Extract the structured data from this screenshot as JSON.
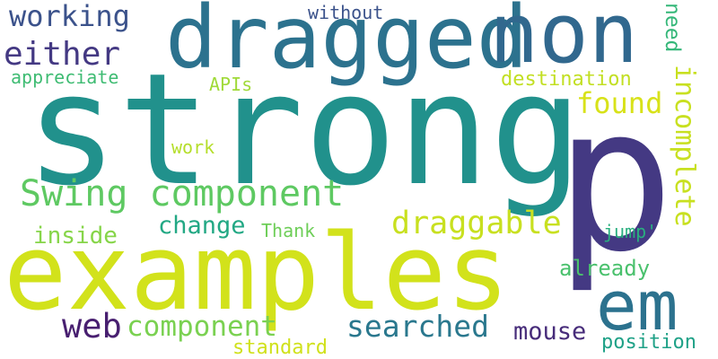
{
  "words": [
    {
      "text": "strong",
      "color": "#21918c"
    },
    {
      "text": "p",
      "color": "#443983"
    },
    {
      "text": "examples",
      "color": "#d2e21b"
    },
    {
      "text": "dragged",
      "color": "#2c728e"
    },
    {
      "text": "non",
      "color": "#31688e"
    },
    {
      "text": "em",
      "color": "#2c728e"
    },
    {
      "text": "Swing component",
      "color": "#5ec962"
    },
    {
      "text": "incomplete",
      "color": "#c8e020"
    },
    {
      "text": "draggable",
      "color": "#c8e020"
    },
    {
      "text": "searched",
      "color": "#2a788e"
    },
    {
      "text": "either",
      "color": "#443983"
    },
    {
      "text": "working",
      "color": "#3b528b"
    },
    {
      "text": "web",
      "color": "#481f70"
    },
    {
      "text": "component",
      "color": "#7ad151"
    },
    {
      "text": "found",
      "color": "#d8e219"
    },
    {
      "text": "need",
      "color": "#35b779"
    },
    {
      "text": "mouse",
      "color": "#472c7a"
    },
    {
      "text": "change",
      "color": "#22a884"
    },
    {
      "text": "already",
      "color": "#4ac16d"
    },
    {
      "text": "inside",
      "color": "#86d549"
    },
    {
      "text": "destination",
      "color": "#c2df23"
    },
    {
      "text": "appreciate",
      "color": "#3fbc73"
    },
    {
      "text": "without",
      "color": "#3b528b"
    },
    {
      "text": "APIs",
      "color": "#a0da39"
    },
    {
      "text": "Thank",
      "color": "#6ece58"
    },
    {
      "text": "work",
      "color": "#b5de2b"
    },
    {
      "text": "jump'",
      "color": "#29af7f"
    },
    {
      "text": "standard",
      "color": "#d0e11c"
    },
    {
      "text": "position",
      "color": "#1fa187"
    }
  ]
}
